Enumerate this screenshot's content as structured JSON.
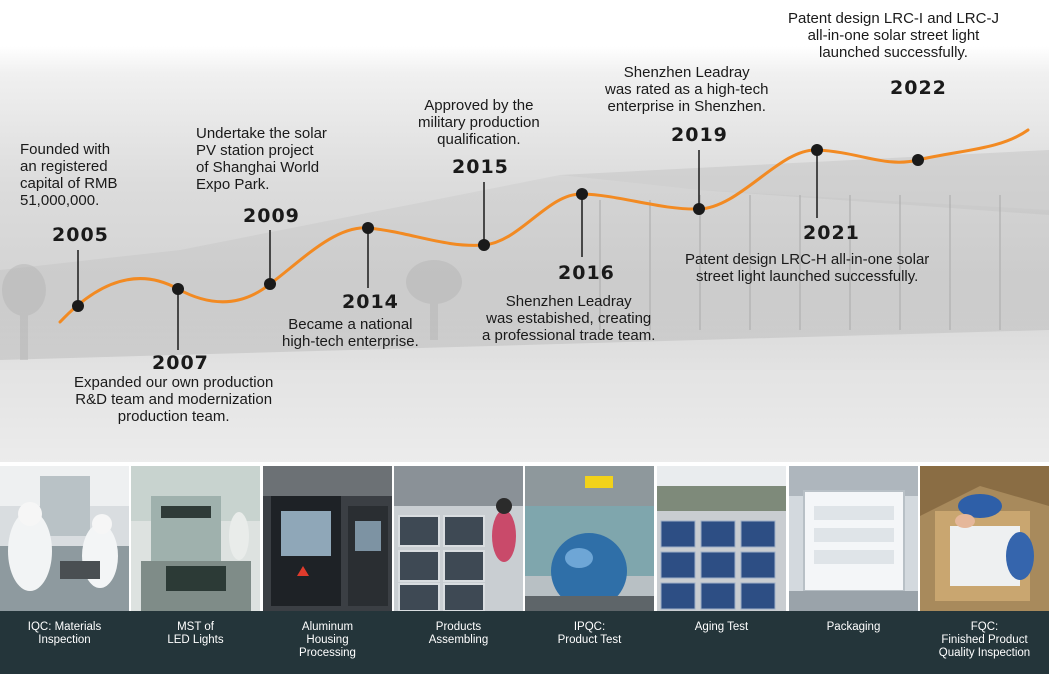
{
  "timeline": {
    "events": [
      {
        "year": "2005",
        "text": "Founded with\nan registered\ncapital of RMB\n51,000,000."
      },
      {
        "year": "2007",
        "text": "Expanded our own production\nR&D team and modernization\nproduction team."
      },
      {
        "year": "2009",
        "text": "Undertake the solar\nPV station project\nof Shanghai World\nExpo Park."
      },
      {
        "year": "2014",
        "text": "Became a national\nhigh-tech enterprise."
      },
      {
        "year": "2015",
        "text": "Approved by the\nmilitary production\nqualification."
      },
      {
        "year": "2016",
        "text": "Shenzhen Leadray\nwas estabished, creating\na professional trade team."
      },
      {
        "year": "2019",
        "text": "Shenzhen Leadray\nwas rated as a high-tech\nenterprise in Shenzhen."
      },
      {
        "year": "2021",
        "text": "Patent design LRC-H all-in-one solar\nstreet light launched successfully."
      },
      {
        "year": "2022",
        "text": "Patent design LRC-I and LRC-J\nall-in-one solar street light\nlaunched successfully."
      }
    ],
    "line_color": "#f28a22",
    "dot_color": "#1a1a1a"
  },
  "process": {
    "steps": [
      {
        "label": "IQC: Materials\nInspection"
      },
      {
        "label": "MST of\nLED Lights"
      },
      {
        "label": "Aluminum\nHousing\nProcessing"
      },
      {
        "label": "Products\nAssembling"
      },
      {
        "label": "IPQC:\nProduct Test"
      },
      {
        "label": "Aging Test"
      },
      {
        "label": "Packaging"
      },
      {
        "label": "FQC:\nFinished Product\nQuality Inspection"
      }
    ],
    "caption_bg": "#24353a"
  }
}
